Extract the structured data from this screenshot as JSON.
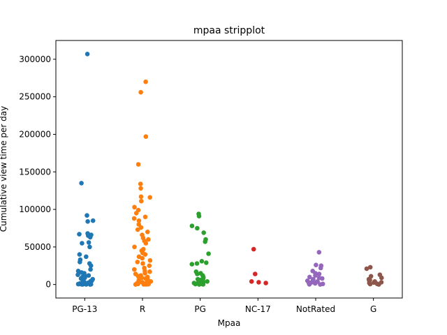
{
  "chart_data": {
    "type": "scatter",
    "subtype": "stripplot",
    "title": "mpaa stripplot",
    "xlabel": "Mpaa",
    "ylabel": "Cumulative view time per day",
    "categories": [
      "PG-13",
      "R",
      "PG",
      "NC-17",
      "NotRated",
      "G"
    ],
    "ylim": [
      -18000,
      325000
    ],
    "yticks": [
      0,
      50000,
      100000,
      150000,
      200000,
      250000,
      300000
    ],
    "ytick_labels": [
      "0",
      "50000",
      "100000",
      "150000",
      "200000",
      "250000",
      "300000"
    ],
    "grid": false,
    "legend": "none",
    "colors": [
      "#1f77b4",
      "#ff7f0e",
      "#2ca02c",
      "#d62728",
      "#9467bd",
      "#8c564b"
    ],
    "series": [
      {
        "category": "PG-13",
        "values": [
          307000,
          135000,
          92000,
          85000,
          84000,
          68000,
          67000,
          66000,
          65000,
          63000,
          56000,
          55000,
          50000,
          40000,
          37000,
          33000,
          30000,
          28000,
          25000,
          20000,
          18000,
          15000,
          12000,
          10000,
          8000,
          6000,
          5000,
          4000,
          3000,
          2000,
          1500,
          1000,
          500,
          200,
          100,
          9000,
          7000,
          3500,
          2500,
          1200,
          800,
          300,
          0,
          16000,
          11000,
          4500,
          2200,
          600,
          150,
          13000
        ]
      },
      {
        "category": "R",
        "values": [
          270000,
          256000,
          197000,
          160000,
          134000,
          128000,
          117000,
          116000,
          111000,
          103000,
          99000,
          95000,
          90000,
          88000,
          85000,
          80000,
          76000,
          73000,
          70000,
          66000,
          62000,
          60000,
          58000,
          55000,
          50000,
          47000,
          45000,
          42000,
          40000,
          37000,
          35000,
          32000,
          30000,
          28000,
          25000,
          22000,
          20000,
          18000,
          15000,
          12000,
          10000,
          8000,
          6000,
          5000,
          4000,
          3000,
          2000,
          1500,
          1000,
          500,
          200,
          100,
          0,
          17000,
          14000,
          11000,
          9000,
          7000,
          3500,
          2500,
          800,
          300
        ]
      },
      {
        "category": "PG",
        "values": [
          94000,
          91000,
          78000,
          75000,
          69000,
          60000,
          57000,
          41000,
          31000,
          29000,
          28000,
          27000,
          17000,
          15000,
          12000,
          10000,
          8000,
          6000,
          5000,
          4000,
          3000,
          2000,
          1000,
          500,
          200,
          0,
          14000,
          9000,
          7000,
          2500
        ]
      },
      {
        "category": "NC-17",
        "values": [
          47000,
          14000,
          4000,
          3000,
          2000
        ]
      },
      {
        "category": "NotRated",
        "values": [
          43000,
          26000,
          25000,
          22000,
          18000,
          15000,
          12000,
          10000,
          8000,
          6000,
          5000,
          4000,
          3000,
          2000,
          1000,
          500,
          200,
          0,
          14000,
          9000,
          7000,
          2500,
          1500,
          800
        ]
      },
      {
        "category": "G",
        "values": [
          23000,
          21000,
          13000,
          11000,
          9000,
          7000,
          5000,
          4000,
          3000,
          2000,
          1000,
          500,
          0,
          6000,
          2500,
          800
        ]
      }
    ]
  }
}
